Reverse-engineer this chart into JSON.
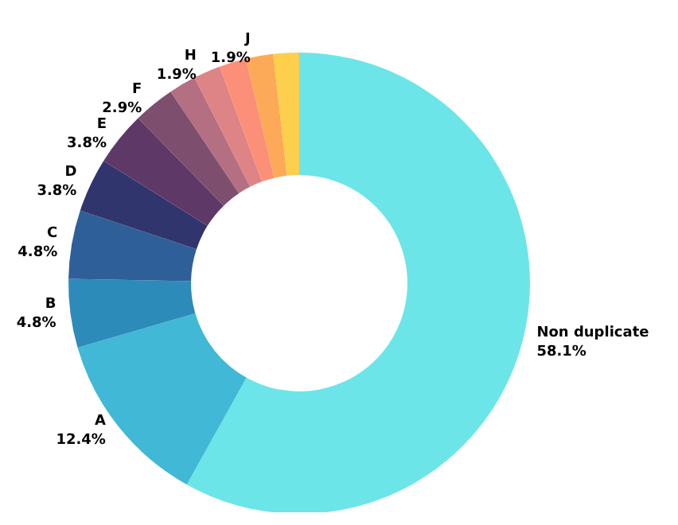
{
  "chart_data": {
    "type": "donut",
    "categories": [
      "Non duplicate",
      "A",
      "B",
      "C",
      "D",
      "E",
      "F",
      null,
      "H",
      null,
      "J",
      null
    ],
    "values": [
      58.1,
      12.4,
      4.8,
      4.8,
      3.8,
      3.8,
      2.9,
      1.9,
      1.9,
      1.9,
      1.9,
      1.8
    ],
    "colors": [
      "#6ce5e8",
      "#41b8d5",
      "#2d8bba",
      "#2f5f98",
      "#31356e",
      "#5e3967",
      "#7d4e6e",
      "#b46f82",
      "#de8386",
      "#fb8f77",
      "#fcaa57",
      "#fecf4c"
    ],
    "value_labels": [
      "58.1%",
      "12.4%",
      "4.8%",
      "4.8%",
      "3.8%",
      "3.8%",
      "2.9%",
      null,
      "1.9%",
      null,
      "1.9%",
      null
    ],
    "legend": false
  }
}
